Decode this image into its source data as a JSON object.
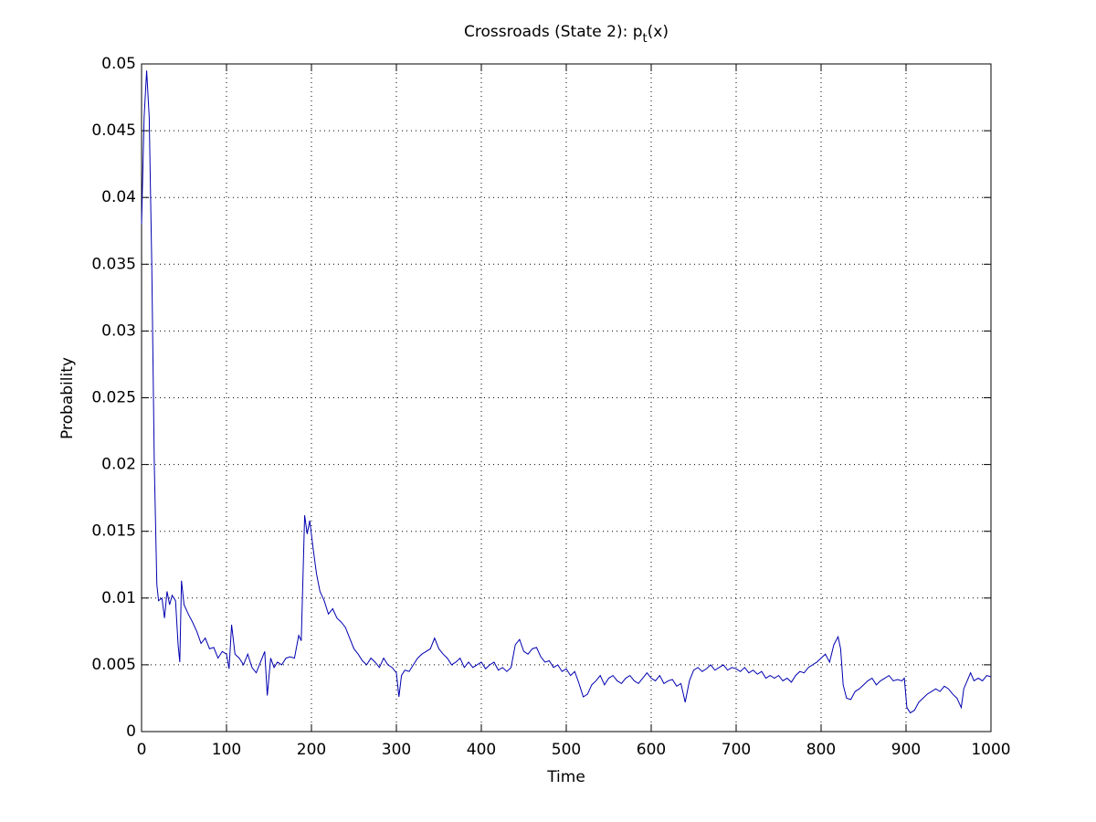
{
  "chart_data": {
    "type": "line",
    "title": "Crossroads (State 2): p_t(x)",
    "xlabel": "Time",
    "ylabel": "Probability",
    "xlim": [
      0,
      1000
    ],
    "ylim": [
      0,
      0.05
    ],
    "xticks": [
      0,
      100,
      200,
      300,
      400,
      500,
      600,
      700,
      800,
      900,
      1000
    ],
    "yticks": [
      0,
      0.005,
      0.01,
      0.015,
      0.02,
      0.025,
      0.03,
      0.035,
      0.04,
      0.045,
      0.05
    ],
    "grid": true,
    "series": [
      {
        "color": "#0000b0",
        "x": [
          0,
          3,
          6,
          9,
          12,
          15,
          18,
          20,
          24,
          27,
          30,
          33,
          36,
          40,
          43,
          45,
          47,
          50,
          55,
          60,
          65,
          70,
          75,
          80,
          85,
          90,
          95,
          100,
          103,
          106,
          110,
          115,
          120,
          125,
          130,
          135,
          140,
          145,
          148,
          152,
          156,
          160,
          165,
          170,
          175,
          180,
          185,
          188,
          192,
          195,
          198,
          202,
          206,
          210,
          215,
          220,
          225,
          230,
          235,
          240,
          245,
          250,
          255,
          260,
          265,
          270,
          275,
          280,
          285,
          290,
          295,
          300,
          303,
          306,
          310,
          315,
          320,
          325,
          330,
          335,
          340,
          345,
          350,
          355,
          360,
          365,
          370,
          375,
          380,
          385,
          390,
          395,
          400,
          405,
          410,
          415,
          420,
          425,
          430,
          435,
          440,
          445,
          450,
          455,
          460,
          465,
          470,
          475,
          480,
          485,
          490,
          495,
          500,
          505,
          510,
          515,
          520,
          525,
          530,
          535,
          540,
          545,
          550,
          555,
          560,
          565,
          570,
          575,
          580,
          585,
          590,
          595,
          600,
          605,
          610,
          615,
          620,
          625,
          630,
          635,
          640,
          645,
          650,
          655,
          660,
          665,
          670,
          675,
          680,
          685,
          690,
          695,
          700,
          705,
          710,
          715,
          720,
          725,
          730,
          735,
          740,
          745,
          750,
          755,
          760,
          765,
          770,
          775,
          780,
          785,
          790,
          795,
          800,
          805,
          810,
          815,
          820,
          823,
          826,
          830,
          835,
          840,
          845,
          850,
          855,
          860,
          865,
          870,
          875,
          880,
          885,
          890,
          895,
          898,
          901,
          905,
          910,
          915,
          920,
          925,
          930,
          935,
          940,
          945,
          950,
          955,
          960,
          965,
          968,
          972,
          976,
          980,
          985,
          990,
          995,
          1000
        ],
        "values": [
          0.038,
          0.046,
          0.0495,
          0.046,
          0.035,
          0.02,
          0.011,
          0.0098,
          0.01,
          0.0085,
          0.0105,
          0.0095,
          0.0102,
          0.0098,
          0.0065,
          0.0052,
          0.0113,
          0.0095,
          0.0088,
          0.0082,
          0.0075,
          0.0066,
          0.007,
          0.0062,
          0.0063,
          0.0055,
          0.006,
          0.0058,
          0.0047,
          0.008,
          0.0058,
          0.0055,
          0.005,
          0.0058,
          0.0048,
          0.0044,
          0.0052,
          0.006,
          0.0027,
          0.0055,
          0.0048,
          0.0052,
          0.005,
          0.0055,
          0.0056,
          0.0055,
          0.0072,
          0.0068,
          0.0162,
          0.0148,
          0.0158,
          0.0137,
          0.0118,
          0.0105,
          0.0098,
          0.0088,
          0.0092,
          0.0085,
          0.0082,
          0.0078,
          0.007,
          0.0062,
          0.0058,
          0.0053,
          0.005,
          0.0055,
          0.0052,
          0.0048,
          0.0055,
          0.005,
          0.0048,
          0.0044,
          0.0026,
          0.0042,
          0.0046,
          0.0045,
          0.005,
          0.0055,
          0.0058,
          0.006,
          0.0062,
          0.007,
          0.0062,
          0.0058,
          0.0055,
          0.005,
          0.0052,
          0.0055,
          0.0048,
          0.0052,
          0.0048,
          0.005,
          0.0052,
          0.0047,
          0.005,
          0.0052,
          0.0046,
          0.0048,
          0.0045,
          0.0048,
          0.0065,
          0.0069,
          0.006,
          0.0058,
          0.0062,
          0.0063,
          0.0056,
          0.0052,
          0.0053,
          0.0048,
          0.005,
          0.0045,
          0.0047,
          0.0042,
          0.0045,
          0.0036,
          0.0026,
          0.0028,
          0.0035,
          0.0038,
          0.0042,
          0.0035,
          0.004,
          0.0042,
          0.0038,
          0.0036,
          0.004,
          0.0042,
          0.0038,
          0.0036,
          0.004,
          0.0044,
          0.004,
          0.0038,
          0.0042,
          0.0036,
          0.0038,
          0.0039,
          0.0034,
          0.0036,
          0.0022,
          0.0038,
          0.0046,
          0.0048,
          0.0045,
          0.0047,
          0.005,
          0.0046,
          0.0048,
          0.005,
          0.0046,
          0.0048,
          0.0047,
          0.0045,
          0.0048,
          0.0044,
          0.0046,
          0.0043,
          0.0045,
          0.004,
          0.0042,
          0.004,
          0.0042,
          0.0038,
          0.004,
          0.0037,
          0.0042,
          0.0045,
          0.0044,
          0.0048,
          0.005,
          0.0052,
          0.0055,
          0.0058,
          0.0052,
          0.0065,
          0.0071,
          0.0062,
          0.0035,
          0.0025,
          0.0024,
          0.003,
          0.0032,
          0.0035,
          0.0038,
          0.004,
          0.0035,
          0.0038,
          0.004,
          0.0042,
          0.0038,
          0.0039,
          0.0038,
          0.004,
          0.0018,
          0.0014,
          0.0016,
          0.0022,
          0.0025,
          0.0028,
          0.003,
          0.0032,
          0.003,
          0.0034,
          0.0032,
          0.0028,
          0.0025,
          0.0018,
          0.0032,
          0.0038,
          0.0044,
          0.0038,
          0.004,
          0.0038,
          0.0042,
          0.0041
        ]
      }
    ]
  }
}
